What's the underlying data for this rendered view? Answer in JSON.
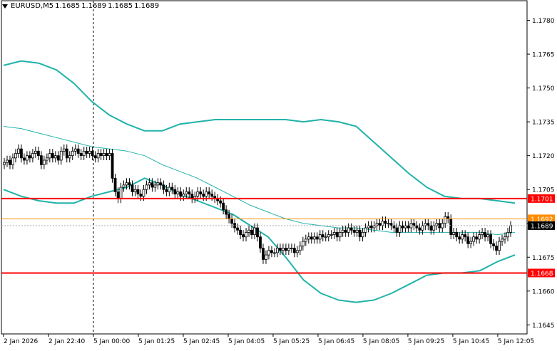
{
  "header": {
    "symbol": "EURUSD,M5",
    "ohlc": [
      "1.1685",
      "1.1689",
      "1.1685",
      "1.1689"
    ]
  },
  "chart_data": {
    "type": "candlestick",
    "title": "EURUSD,M5",
    "ylim": [
      1.1641,
      1.1789
    ],
    "y_ticks": [
      "1.1780",
      "1.1765",
      "1.1750",
      "1.1735",
      "1.1720",
      "1.1705",
      "1.1690",
      "1.1675",
      "1.1660",
      "1.1645"
    ],
    "x_ticks": [
      "2 Jan 2026",
      "2 Jan 22:40",
      "5 Jan 00:00",
      "5 Jan 01:25",
      "5 Jan 02:45",
      "5 Jan 04:05",
      "5 Jan 05:25",
      "5 Jan 06:45",
      "5 Jan 08:05",
      "5 Jan 09:25",
      "5 Jan 10:45",
      "5 Jan 12:05"
    ],
    "grid": false,
    "period_separator_at": "5 Jan 00:00",
    "horizontal_levels": [
      {
        "label": "1.1701",
        "value": 1.1701,
        "color": "#ff0000"
      },
      {
        "label": "1.1668",
        "value": 1.1668,
        "color": "#ff0000"
      },
      {
        "label": "1.1692",
        "value": 1.1692,
        "color": "#ff8c00"
      }
    ],
    "current_price": {
      "label": "1.1689",
      "value": 1.1689
    },
    "indicator_color": "#20b2aa",
    "candle_color": "#000000",
    "close": [
      1.1717,
      1.1718,
      1.1716,
      1.1719,
      1.1721,
      1.1723,
      1.1719,
      1.1718,
      1.172,
      1.1719,
      1.1721,
      1.1722,
      1.172,
      1.1716,
      1.1718,
      1.1719,
      1.1721,
      1.1719,
      1.172,
      1.1718,
      1.1722,
      1.1723,
      1.1719,
      1.172,
      1.1722,
      1.1723,
      1.1721,
      1.172,
      1.1722,
      1.1721,
      1.1722,
      1.172,
      1.1719,
      1.1721,
      1.172,
      1.1721,
      1.172,
      1.1721,
      1.171,
      1.1704,
      1.1701,
      1.1706,
      1.1707,
      1.1708,
      1.1707,
      1.1704,
      1.1705,
      1.1703,
      1.1702,
      1.1705,
      1.1707,
      1.1708,
      1.1706,
      1.1707,
      1.1708,
      1.1707,
      1.1705,
      1.1704,
      1.1706,
      1.1705,
      1.1703,
      1.1704,
      1.1702,
      1.1703,
      1.1704,
      1.1703,
      1.1701,
      1.1702,
      1.1704,
      1.1703,
      1.1702,
      1.1704,
      1.1703,
      1.1702,
      1.1701,
      1.17,
      1.1699,
      1.1696,
      1.1694,
      1.1692,
      1.169,
      1.1688,
      1.1687,
      1.1685,
      1.1684,
      1.1686,
      1.1687,
      1.1685,
      1.1688,
      1.1684,
      1.1679,
      1.1674,
      1.1676,
      1.1678,
      1.1677,
      1.1677,
      1.1679,
      1.1678,
      1.1679,
      1.1678,
      1.1679,
      1.1679,
      1.1677,
      1.1678,
      1.168,
      1.1682,
      1.1683,
      1.1684,
      1.1683,
      1.1684,
      1.1683,
      1.1685,
      1.1684,
      1.1684,
      1.1685,
      1.1685,
      1.1686,
      1.1684,
      1.1686,
      1.1687,
      1.1686,
      1.1688,
      1.1687,
      1.1686,
      1.1687,
      1.1684,
      1.1686,
      1.1688,
      1.1689,
      1.1688,
      1.1689,
      1.169,
      1.1689,
      1.1691,
      1.169,
      1.169,
      1.1689,
      1.1688,
      1.1686,
      1.1689,
      1.1688,
      1.1689,
      1.1688,
      1.169,
      1.1689,
      1.1688,
      1.1687,
      1.1689,
      1.169,
      1.1689,
      1.1687,
      1.1689,
      1.169,
      1.1688,
      1.169,
      1.1693,
      1.1692,
      1.1685,
      1.1686,
      1.1684,
      1.1683,
      1.1685,
      1.1684,
      1.1681,
      1.1682,
      1.1684,
      1.1683,
      1.1685,
      1.1686,
      1.1684,
      1.1685,
      1.1681,
      1.168,
      1.1678,
      1.1682,
      1.1683,
      1.1684,
      1.1686,
      1.1689
    ],
    "bollinger_upper": [
      1.176,
      1.1762,
      1.1761,
      1.1758,
      1.1752,
      1.1744,
      1.1738,
      1.1734,
      1.1731,
      1.1731,
      1.1734,
      1.1735,
      1.1736,
      1.1736,
      1.1736,
      1.1736,
      1.1736,
      1.1735,
      1.1736,
      1.1735,
      1.1733,
      1.1726,
      1.1719,
      1.1712,
      1.1706,
      1.1702,
      1.1701,
      1.1701,
      1.17,
      1.1699
    ],
    "bollinger_middle": [
      1.1733,
      1.1732,
      1.173,
      1.1728,
      1.1726,
      1.1724,
      1.1723,
      1.1722,
      1.172,
      1.1716,
      1.1713,
      1.171,
      1.1706,
      1.1702,
      1.1698,
      1.1695,
      1.1692,
      1.169,
      1.1689,
      1.1688,
      1.1688,
      1.1687,
      1.1686,
      1.1686,
      1.1686,
      1.1686,
      1.1686,
      1.1686,
      1.1685,
      1.1686
    ],
    "bollinger_lower": [
      1.1705,
      1.1702,
      1.17,
      1.1699,
      1.1699,
      1.1702,
      1.1704,
      1.1706,
      1.171,
      1.1707,
      1.1703,
      1.17,
      1.1697,
      1.1694,
      1.1689,
      1.1684,
      1.1675,
      1.1665,
      1.1659,
      1.1656,
      1.1655,
      1.1656,
      1.1659,
      1.1663,
      1.1667,
      1.1668,
      1.1668,
      1.1669,
      1.1673,
      1.1676
    ]
  }
}
